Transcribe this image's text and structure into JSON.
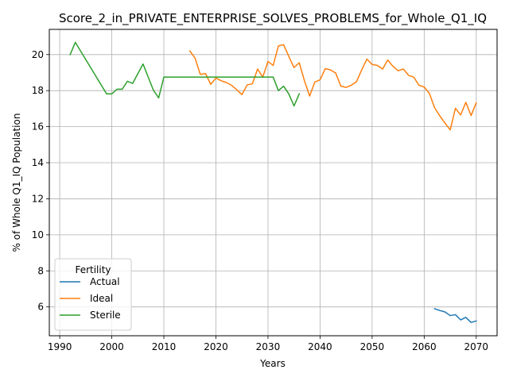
{
  "chart_data": {
    "type": "line",
    "title": "Score_2_in_PRIVATE_ENTERPRISE_SOLVES_PROBLEMS_for_Whole_Q1_IQ",
    "xlabel": "Years",
    "ylabel": "% of Whole Q1_IQ Population",
    "xlim": [
      1988,
      2074
    ],
    "ylim": [
      4.4,
      21.4
    ],
    "xticks": [
      1990,
      2000,
      2010,
      2020,
      2030,
      2040,
      2050,
      2060,
      2070
    ],
    "yticks": [
      6,
      8,
      10,
      12,
      14,
      16,
      18,
      20
    ],
    "grid": true,
    "legend": {
      "title": "Fertility",
      "position": "lower-left"
    },
    "series": [
      {
        "name": "Actual",
        "color": "#1f77b4",
        "x": [
          2062,
          2063,
          2064,
          2065,
          2066,
          2067,
          2068,
          2069,
          2070
        ],
        "y": [
          5.9,
          5.8,
          5.72,
          5.52,
          5.57,
          5.28,
          5.42,
          5.14,
          5.22
        ]
      },
      {
        "name": "Ideal",
        "color": "#ff7f0e",
        "x": [
          2015,
          2016,
          2017,
          2018,
          2019,
          2020,
          2021,
          2022,
          2023,
          2024,
          2025,
          2026,
          2027,
          2028,
          2029,
          2030,
          2031,
          2032,
          2033,
          2034,
          2035,
          2036,
          2037,
          2038,
          2039,
          2040,
          2041,
          2042,
          2043,
          2044,
          2045,
          2046,
          2047,
          2048,
          2049,
          2050,
          2051,
          2052,
          2053,
          2054,
          2055,
          2056,
          2057,
          2058,
          2059,
          2060,
          2061,
          2062,
          2063,
          2064,
          2065,
          2066,
          2067,
          2068,
          2069,
          2070
        ],
        "y": [
          20.2,
          19.8,
          18.9,
          18.95,
          18.35,
          18.7,
          18.55,
          18.45,
          18.3,
          18.05,
          17.78,
          18.32,
          18.38,
          19.2,
          18.75,
          19.62,
          19.4,
          20.48,
          20.55,
          19.9,
          19.28,
          19.55,
          18.55,
          17.7,
          18.48,
          18.6,
          19.22,
          19.15,
          18.98,
          18.25,
          18.18,
          18.3,
          18.5,
          19.15,
          19.75,
          19.45,
          19.4,
          19.2,
          19.7,
          19.35,
          19.1,
          19.2,
          18.85,
          18.75,
          18.3,
          18.2,
          17.85,
          17.05,
          16.6,
          16.2,
          15.82,
          17.02,
          16.65,
          17.35,
          16.62,
          17.32
        ]
      },
      {
        "name": "Sterile",
        "color": "#2ca02c",
        "x": [
          1992,
          1993,
          1999,
          2000,
          2001,
          2002,
          2003,
          2004,
          2006,
          2008,
          2009,
          2010,
          2031,
          2032,
          2033,
          2034,
          2035,
          2036
        ],
        "y": [
          20.0,
          20.68,
          17.82,
          17.82,
          18.08,
          18.08,
          18.52,
          18.4,
          19.48,
          18.02,
          17.6,
          18.75,
          18.75,
          18.0,
          18.25,
          17.82,
          17.15,
          17.82
        ]
      }
    ]
  }
}
